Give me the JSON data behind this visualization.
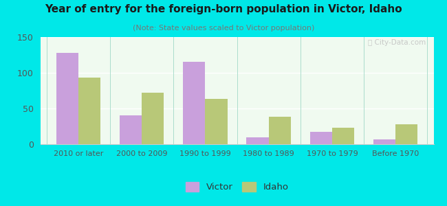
{
  "title": "Year of entry for the foreign-born population in Victor, Idaho",
  "subtitle": "(Note: State values scaled to Victor population)",
  "categories": [
    "2010 or later",
    "2000 to 2009",
    "1990 to 1999",
    "1980 to 1989",
    "1970 to 1979",
    "Before 1970"
  ],
  "victor_values": [
    128,
    40,
    115,
    10,
    17,
    7
  ],
  "idaho_values": [
    93,
    72,
    63,
    38,
    23,
    28
  ],
  "victor_color": "#c9a0dc",
  "idaho_color": "#b8c878",
  "background_outer": "#00e8e8",
  "ylim": [
    0,
    150
  ],
  "yticks": [
    0,
    50,
    100,
    150
  ],
  "bar_width": 0.35,
  "legend_labels": [
    "Victor",
    "Idaho"
  ],
  "watermark": "Ⓢ City-Data.com"
}
